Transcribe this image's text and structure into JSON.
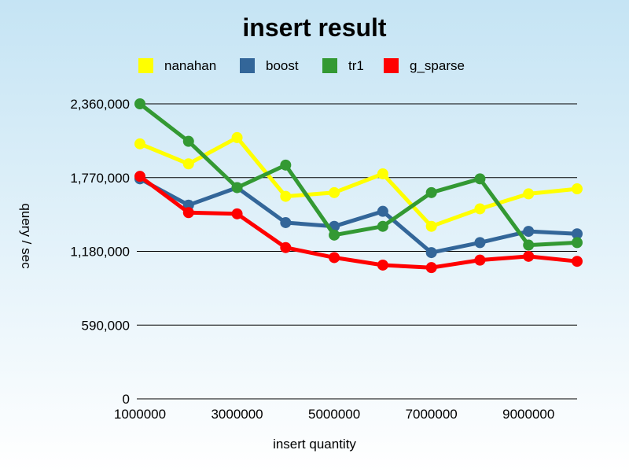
{
  "chart_data": {
    "type": "line",
    "title": "insert result",
    "xlabel": "insert quantity",
    "ylabel": "query / sec",
    "x": [
      1000000,
      2000000,
      3000000,
      4000000,
      5000000,
      6000000,
      7000000,
      8000000,
      9000000,
      10000000
    ],
    "xlim": [
      1000000,
      10000000
    ],
    "xticks": [
      1000000,
      3000000,
      5000000,
      7000000,
      9000000
    ],
    "xtick_labels": [
      "1000000",
      "3000000",
      "5000000",
      "7000000",
      "9000000"
    ],
    "ylim": [
      0,
      2360000
    ],
    "yticks": [
      0,
      590000,
      1180000,
      1770000,
      2360000
    ],
    "ytick_labels": [
      "0",
      "590,000",
      "1,180,000",
      "1,770,000",
      "2,360,000"
    ],
    "grid": "horizontal",
    "legend_position": "top",
    "series": [
      {
        "name": "nanahan",
        "color": "#ffff00",
        "values": [
          2040000,
          1880000,
          2090000,
          1620000,
          1650000,
          1800000,
          1380000,
          1520000,
          1640000,
          1680000
        ]
      },
      {
        "name": "boost",
        "color": "#336699",
        "values": [
          1760000,
          1550000,
          1690000,
          1410000,
          1380000,
          1500000,
          1170000,
          1250000,
          1340000,
          1320000
        ]
      },
      {
        "name": "tr1",
        "color": "#339933",
        "values": [
          2360000,
          2060000,
          1690000,
          1870000,
          1310000,
          1380000,
          1650000,
          1760000,
          1230000,
          1250000
        ]
      },
      {
        "name": "g_sparse",
        "color": "#ff0000",
        "values": [
          1780000,
          1490000,
          1480000,
          1210000,
          1130000,
          1070000,
          1050000,
          1110000,
          1140000,
          1100000
        ]
      }
    ]
  }
}
